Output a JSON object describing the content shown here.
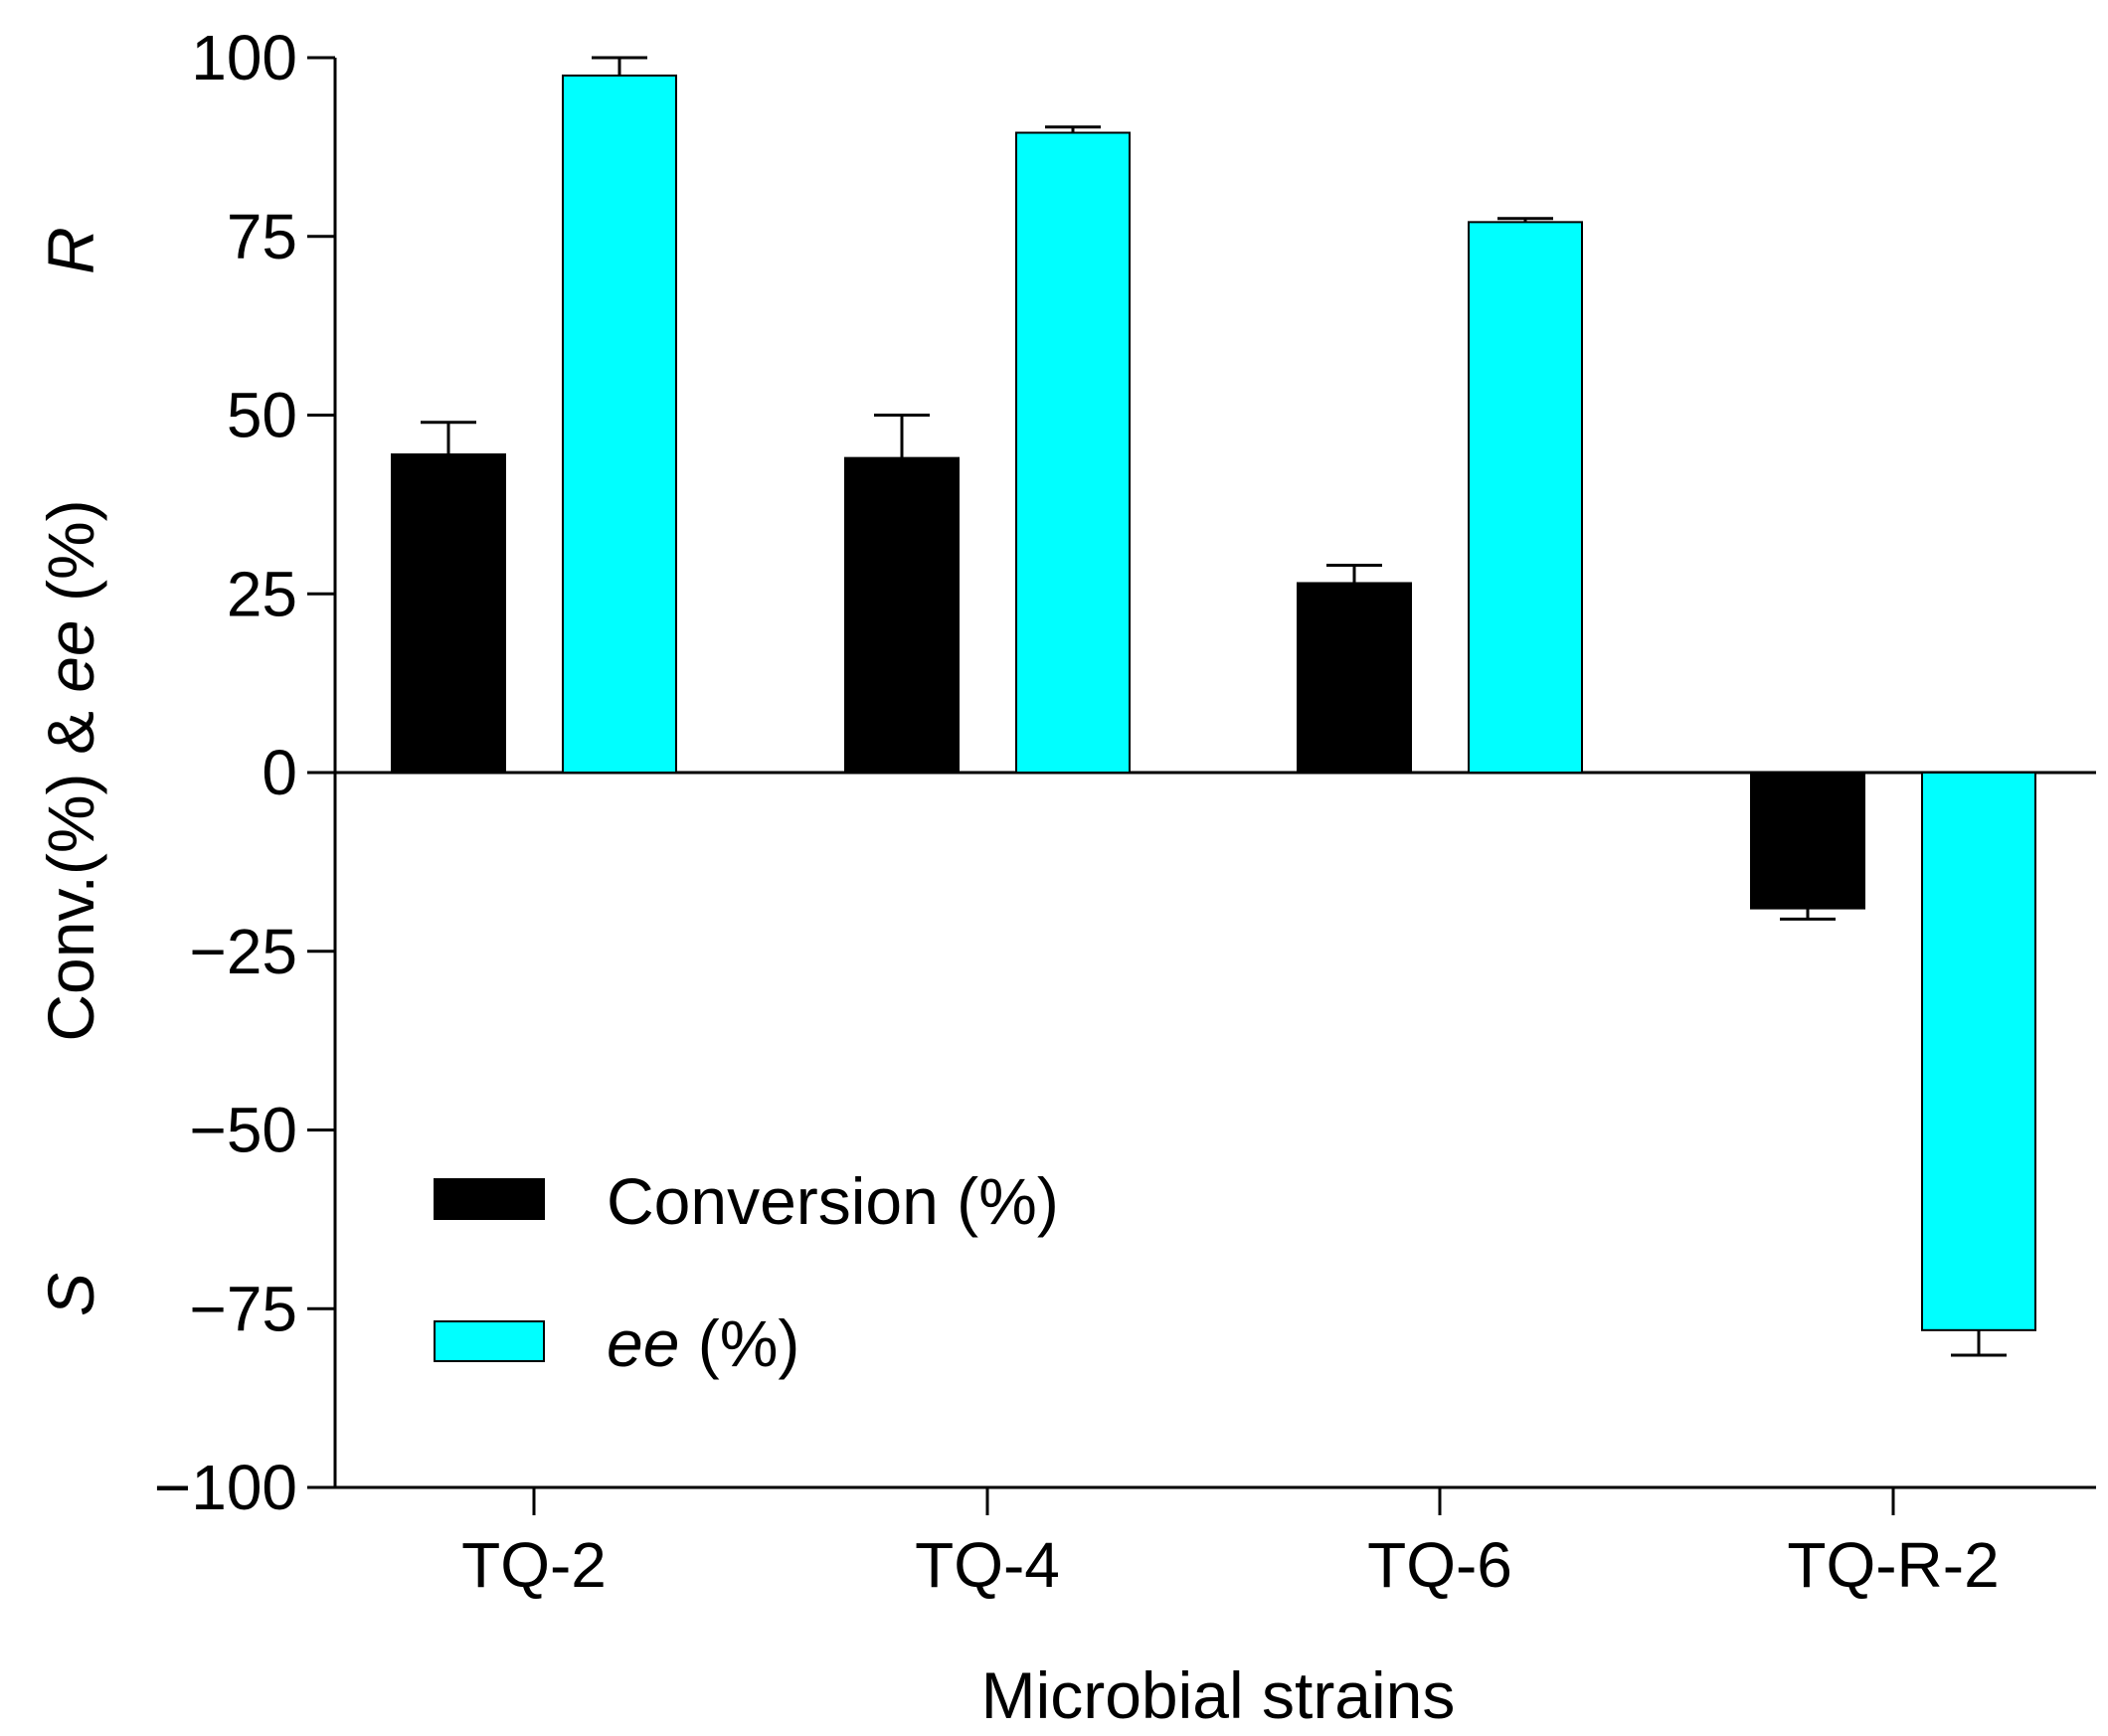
{
  "chart_data": {
    "type": "bar",
    "title": "",
    "xlabel": "Microbial strains",
    "ylabel": {
      "parts": [
        {
          "text": "Conv.(%) & ",
          "italic": false
        },
        {
          "text": "ee",
          "italic": true
        },
        {
          "text": " (%)",
          "italic": false
        }
      ]
    },
    "ylim": [
      -100,
      100
    ],
    "yticks": [
      100,
      75,
      50,
      25,
      0,
      -25,
      -50,
      -75,
      -100
    ],
    "ytick_labels": [
      "100",
      "75",
      "50",
      "25",
      "0",
      "−25",
      "−50",
      "−75",
      "−100"
    ],
    "direction_labels": {
      "top": "R",
      "bottom": "S"
    },
    "categories": [
      "TQ-2",
      "TQ-4",
      "TQ-6",
      "TQ-R-2"
    ],
    "series": [
      {
        "name": "Conversion (%)",
        "legend_parts": [
          {
            "text": "Conversion (%)",
            "italic": false
          }
        ],
        "color": "#000000",
        "values": [
          44.5,
          44.0,
          26.5,
          -19.0
        ],
        "errors": [
          4.5,
          6.0,
          2.5,
          1.5
        ]
      },
      {
        "name": "ee (%)",
        "legend_parts": [
          {
            "text": "ee",
            "italic": true
          },
          {
            "text": " (%)",
            "italic": false
          }
        ],
        "color": "#00ffff",
        "values": [
          97.5,
          89.5,
          77.0,
          -78.0
        ],
        "errors": [
          2.5,
          0.8,
          0.5,
          3.5
        ]
      }
    ],
    "grid": false,
    "legend_position": "lower-left"
  }
}
